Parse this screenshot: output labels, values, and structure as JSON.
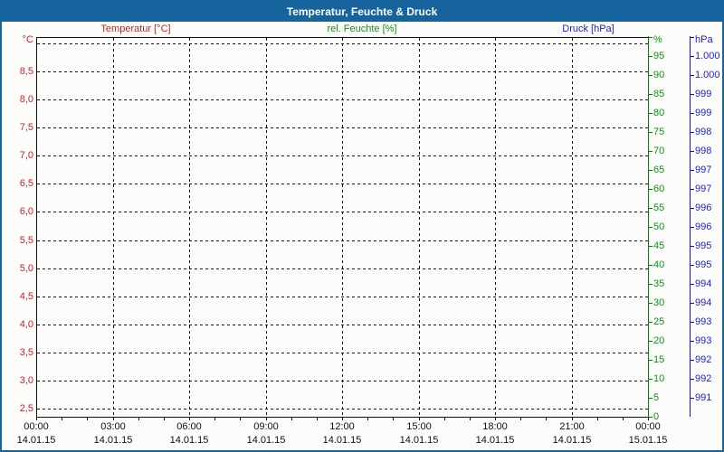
{
  "window": {
    "title": "Temperatur, Feuchte & Druck"
  },
  "legend": {
    "temperature": "Temperatur [°C]",
    "humidity": "rel. Feuchte [%]",
    "pressure": "Druck [hPa]"
  },
  "colors": {
    "titlebar_bg": "#17639d",
    "frame": "#17639d",
    "background": "#fcfdfa",
    "title_text": "#ffffff",
    "temperature": "#cc2222",
    "humidity": "#0f9410",
    "humidity_axis": "#067a06",
    "pressure": "#1c1ce0",
    "pressure_axis": "#1414b8",
    "grid": "#141414",
    "axis": "#101010"
  },
  "axes": {
    "temperature": {
      "unit": "°C",
      "tick_labels": [
        "°C",
        "8,5",
        "8,0",
        "7,5",
        "7,0",
        "6,5",
        "6,0",
        "5,5",
        "5,0",
        "4,5",
        "4,0",
        "3,5",
        "3,0",
        "2,5"
      ],
      "range": [
        2.5,
        9.0
      ],
      "step": 0.5
    },
    "humidity": {
      "unit": "%",
      "tick_labels": [
        "%",
        "95",
        "90",
        "85",
        "80",
        "75",
        "70",
        "65",
        "60",
        "55",
        "50",
        "45",
        "40",
        "35",
        "30",
        "25",
        "20",
        "15",
        "10",
        "5",
        "0"
      ],
      "range": [
        0,
        100
      ],
      "step": 5
    },
    "pressure": {
      "unit": "hPa",
      "tick_labels": [
        "hPa",
        "1.000",
        "1.000",
        "999",
        "999",
        "998",
        "998",
        "997",
        "997",
        "996",
        "996",
        "995",
        "995",
        "994",
        "994",
        "993",
        "993",
        "992",
        "992",
        "991"
      ],
      "range_display": [
        991,
        1000
      ],
      "step": 0.5
    },
    "time": {
      "ticks": [
        {
          "time": "00:00",
          "date": "14.01.15"
        },
        {
          "time": "03:00",
          "date": "14.01.15"
        },
        {
          "time": "06:00",
          "date": "14.01.15"
        },
        {
          "time": "09:00",
          "date": "14.01.15"
        },
        {
          "time": "12:00",
          "date": "14.01.15"
        },
        {
          "time": "15:00",
          "date": "14.01.15"
        },
        {
          "time": "18:00",
          "date": "14.01.15"
        },
        {
          "time": "21:00",
          "date": "14.01.15"
        },
        {
          "time": "00:00",
          "date": "15.01.15"
        }
      ]
    }
  },
  "chart_data": {
    "type": "line",
    "title": "Temperatur, Feuchte & Druck",
    "x": [
      "00:00",
      "03:00",
      "06:00",
      "09:00",
      "12:00",
      "15:00",
      "18:00",
      "21:00",
      "00:00"
    ],
    "x_dates": [
      "14.01.15",
      "14.01.15",
      "14.01.15",
      "14.01.15",
      "14.01.15",
      "14.01.15",
      "14.01.15",
      "14.01.15",
      "15.01.15"
    ],
    "series": [
      {
        "name": "Temperatur [°C]",
        "axis": "left",
        "color": "#cc2222",
        "ylim": [
          2.5,
          9.0
        ],
        "values": []
      },
      {
        "name": "rel. Feuchte [%]",
        "axis": "right-inner",
        "color": "#0f9410",
        "ylim": [
          0,
          100
        ],
        "values": []
      },
      {
        "name": "Druck [hPa]",
        "axis": "right-outer",
        "color": "#1c1ce0",
        "ylim_labels": [
          "991",
          "1.000"
        ],
        "values": []
      }
    ],
    "grid": "dashed, horizontal every 0.5 °C, vertical every 3 h",
    "legend_position": "top",
    "note": "Plot area is empty — no data points are drawn"
  }
}
